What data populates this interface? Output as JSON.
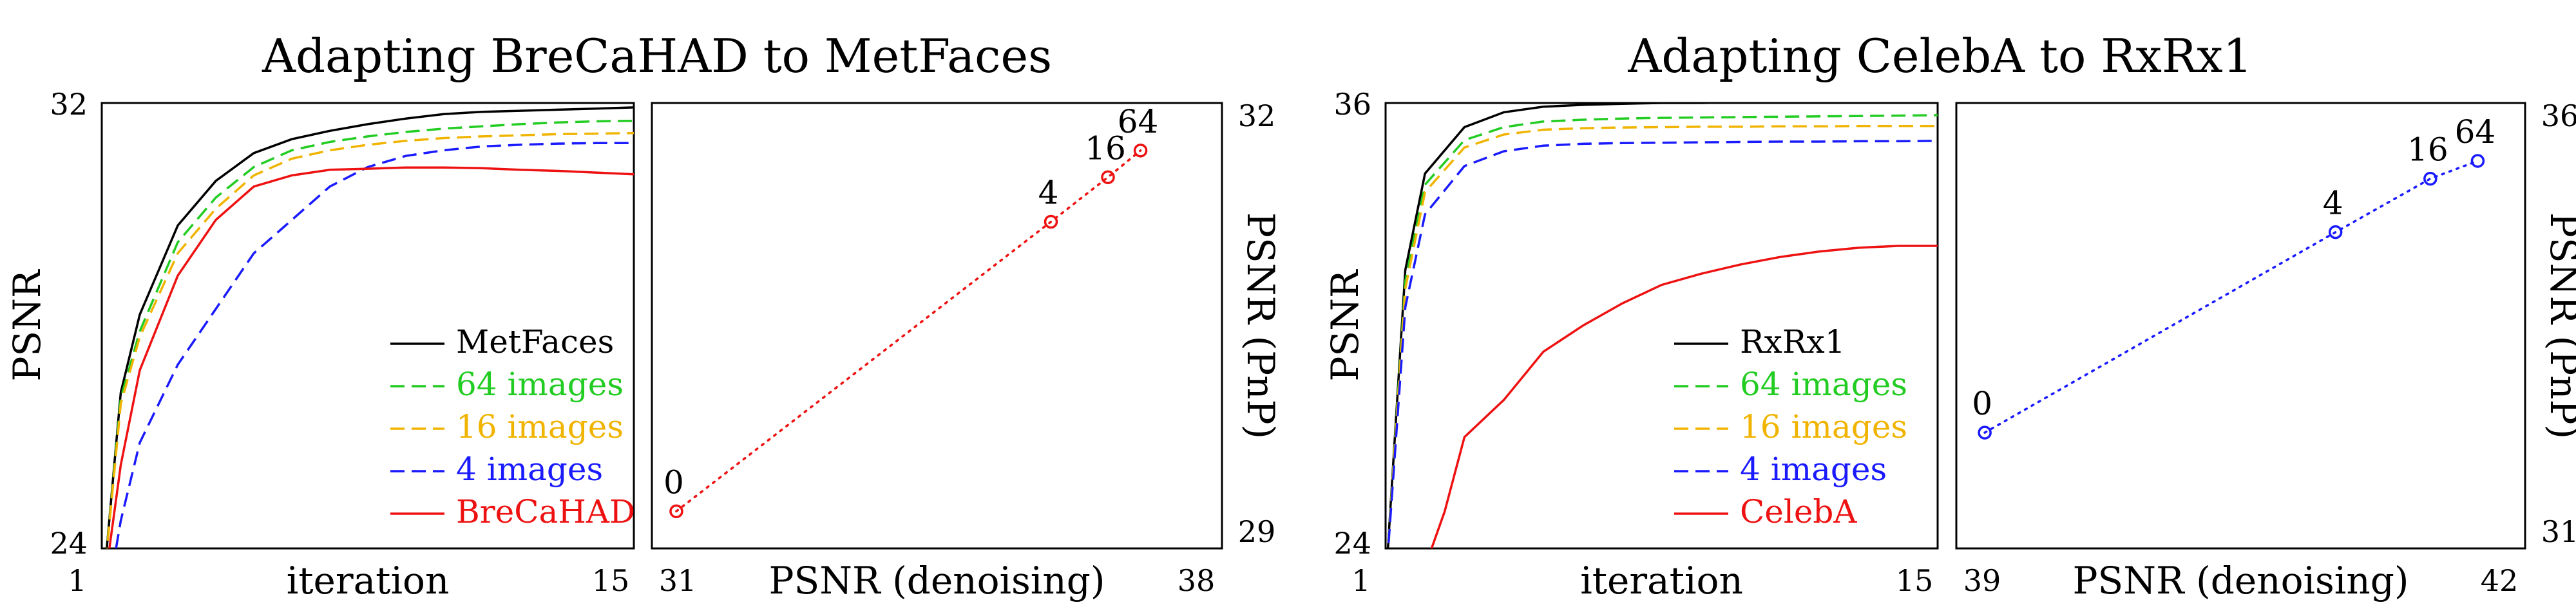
{
  "chart_data": [
    {
      "type": "line",
      "title": "Adapting BreCaHAD to MetFaces",
      "xlabel": "iteration",
      "ylabel": "PSNR",
      "xlim": [
        1,
        15
      ],
      "ylim": [
        24,
        32
      ],
      "xticks": [
        "1",
        "15"
      ],
      "yticks": [
        "24",
        "32"
      ],
      "legend": "bottom-right",
      "series": [
        {
          "name": "MetFaces",
          "color": "#000000",
          "dash": "solid",
          "x": [
            1,
            1.5,
            2,
            3,
            4,
            5,
            6,
            7,
            8,
            9,
            10,
            11,
            12,
            13,
            14,
            15
          ],
          "y": [
            23.0,
            26.8,
            28.2,
            29.8,
            30.6,
            31.1,
            31.35,
            31.5,
            31.62,
            31.72,
            31.8,
            31.84,
            31.86,
            31.88,
            31.9,
            31.92
          ]
        },
        {
          "name": "64 images",
          "color": "#22cc22",
          "dash": "dashed",
          "x": [
            1,
            1.5,
            2,
            3,
            4,
            5,
            6,
            7,
            8,
            9,
            10,
            11,
            12,
            13,
            14,
            15
          ],
          "y": [
            23.0,
            26.7,
            27.9,
            29.5,
            30.3,
            30.85,
            31.15,
            31.3,
            31.4,
            31.48,
            31.54,
            31.58,
            31.62,
            31.65,
            31.67,
            31.68
          ]
        },
        {
          "name": "16 images",
          "color": "#f0b400",
          "dash": "dashed",
          "x": [
            1,
            1.5,
            2,
            3,
            4,
            5,
            6,
            7,
            8,
            9,
            10,
            11,
            12,
            13,
            14,
            15
          ],
          "y": [
            23.0,
            26.6,
            27.8,
            29.3,
            30.1,
            30.7,
            31.0,
            31.15,
            31.25,
            31.32,
            31.37,
            31.4,
            31.42,
            31.44,
            31.45,
            31.46
          ]
        },
        {
          "name": "4 images",
          "color": "#1a1aff",
          "dash": "dashed",
          "x": [
            1,
            1.5,
            2,
            3,
            4,
            5,
            6,
            7,
            8,
            9,
            10,
            11,
            12,
            13,
            14,
            15
          ],
          "y": [
            22.5,
            24.5,
            25.9,
            27.3,
            28.3,
            29.3,
            29.9,
            30.5,
            30.85,
            31.05,
            31.15,
            31.22,
            31.25,
            31.27,
            31.28,
            31.28
          ]
        },
        {
          "name": "BreCaHAD",
          "color": "#ee1111",
          "dash": "solid",
          "x": [
            1,
            1.5,
            2,
            3,
            4,
            5,
            6,
            7,
            8,
            9,
            10,
            11,
            12,
            13,
            14,
            15
          ],
          "y": [
            23.0,
            25.5,
            27.2,
            28.9,
            29.9,
            30.5,
            30.7,
            30.8,
            30.82,
            30.84,
            30.84,
            30.83,
            30.8,
            30.78,
            30.75,
            30.72
          ]
        }
      ]
    },
    {
      "type": "scatter",
      "xlabel": "PSNR (denoising)",
      "ylabel": "PSNR (PnP)",
      "xlim": [
        31,
        38
      ],
      "ylim": [
        29,
        32
      ],
      "xticks": [
        "31",
        "38"
      ],
      "yticks": [
        "29",
        "32"
      ],
      "color": "#ee1111",
      "points": [
        {
          "label": "0",
          "x": 31.3,
          "y": 29.25
        },
        {
          "label": "4",
          "x": 35.9,
          "y": 31.2
        },
        {
          "label": "16",
          "x": 36.6,
          "y": 31.5
        },
        {
          "label": "64",
          "x": 37.0,
          "y": 31.68
        }
      ]
    },
    {
      "type": "line",
      "title": "Adapting CelebA to RxRx1",
      "xlabel": "iteration",
      "ylabel": "PSNR",
      "xlim": [
        1,
        15
      ],
      "ylim": [
        24,
        36
      ],
      "xticks": [
        "1",
        "15"
      ],
      "yticks": [
        "24",
        "36"
      ],
      "legend": "bottom-right",
      "series": [
        {
          "name": "RxRx1",
          "color": "#000000",
          "dash": "solid",
          "x": [
            1,
            1.5,
            2,
            3,
            4,
            5,
            6,
            7,
            8,
            9,
            10,
            11,
            12,
            13,
            14,
            15
          ],
          "y": [
            23.0,
            31.5,
            34.1,
            35.35,
            35.75,
            35.9,
            35.95,
            35.98,
            36.0,
            36.0,
            36.02,
            36.03,
            36.04,
            36.05,
            36.06,
            36.08
          ]
        },
        {
          "name": "64 images",
          "color": "#22cc22",
          "dash": "dashed",
          "x": [
            1,
            1.5,
            2,
            3,
            4,
            5,
            6,
            7,
            8,
            9,
            10,
            11,
            12,
            13,
            14,
            15
          ],
          "y": [
            23.0,
            31.2,
            33.8,
            35.0,
            35.35,
            35.5,
            35.55,
            35.58,
            35.6,
            35.61,
            35.62,
            35.63,
            35.64,
            35.65,
            35.66,
            35.67
          ]
        },
        {
          "name": "16 images",
          "color": "#f0b400",
          "dash": "dashed",
          "x": [
            1,
            1.5,
            2,
            3,
            4,
            5,
            6,
            7,
            8,
            9,
            10,
            11,
            12,
            13,
            14,
            15
          ],
          "y": [
            23.0,
            31.0,
            33.6,
            34.8,
            35.15,
            35.28,
            35.32,
            35.34,
            35.35,
            35.36,
            35.36,
            35.37,
            35.37,
            35.38,
            35.38,
            35.38
          ]
        },
        {
          "name": "4 images",
          "color": "#1a1aff",
          "dash": "dashed",
          "x": [
            1,
            1.5,
            2,
            3,
            4,
            5,
            6,
            7,
            8,
            9,
            10,
            11,
            12,
            13,
            14,
            15
          ],
          "y": [
            23.0,
            30.5,
            33.0,
            34.3,
            34.7,
            34.85,
            34.9,
            34.92,
            34.93,
            34.94,
            34.95,
            34.96,
            34.96,
            34.97,
            34.97,
            34.98
          ]
        },
        {
          "name": "CelebA",
          "color": "#ee1111",
          "dash": "solid",
          "x": [
            2,
            2.5,
            3,
            4,
            5,
            6,
            7,
            8,
            9,
            10,
            11,
            12,
            13,
            14,
            15
          ],
          "y": [
            23.5,
            25.0,
            27.0,
            28.0,
            29.3,
            30.0,
            30.6,
            31.1,
            31.4,
            31.65,
            31.85,
            32.0,
            32.1,
            32.15,
            32.15
          ]
        }
      ]
    },
    {
      "type": "scatter",
      "xlabel": "PSNR (denoising)",
      "ylabel": "PSNR (PnP)",
      "xlim": [
        39,
        42
      ],
      "ylim": [
        31,
        36
      ],
      "xticks": [
        "39",
        "42"
      ],
      "yticks": [
        "31",
        "36"
      ],
      "color": "#1a1aff",
      "points": [
        {
          "label": "0",
          "x": 39.15,
          "y": 32.3
        },
        {
          "label": "4",
          "x": 41.0,
          "y": 34.55
        },
        {
          "label": "16",
          "x": 41.5,
          "y": 35.15
        },
        {
          "label": "64",
          "x": 41.75,
          "y": 35.35
        }
      ]
    }
  ]
}
